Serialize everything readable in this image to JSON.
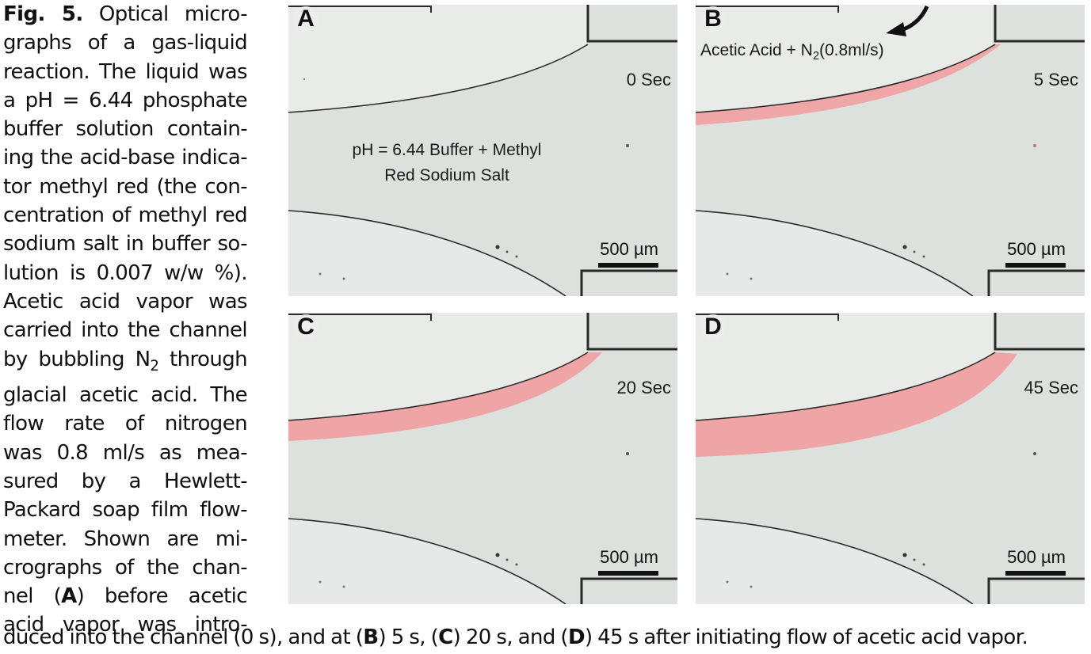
{
  "caption": {
    "fig_label": "Fig. 5.",
    "lines": [
      {
        "pre": "",
        "post": " Optical micro-"
      },
      {
        "text": "graphs of a gas-liquid"
      },
      {
        "text": "reaction. The liquid was"
      },
      {
        "text": "a pH = 6.44 phosphate"
      },
      {
        "text": "buffer solution contain-"
      },
      {
        "text": "ing the acid-base indica-"
      },
      {
        "text": "tor methyl red (the con-"
      },
      {
        "text": "centration of methyl red"
      },
      {
        "text": "sodium salt in buffer so-"
      },
      {
        "text": "lution is 0.007 w/w %)."
      },
      {
        "text": "Acetic acid vapor was"
      },
      {
        "text": "carried into the channel"
      },
      {
        "pre": "by bubbling N",
        "sub": "2",
        "post": " through"
      },
      {
        "text": "glacial acetic acid. The"
      },
      {
        "text": "flow rate of nitrogen"
      },
      {
        "text": "was 0.8 ml/s as mea-"
      },
      {
        "text": "sured by a Hewlett-"
      },
      {
        "text": "Packard soap film flow-"
      },
      {
        "text": "meter. Shown are mi-"
      },
      {
        "text": "crographs of the chan-"
      },
      {
        "pre": "nel (",
        "bold": "A",
        "post": ") before acetic"
      },
      {
        "text": "acid vapor was intro-"
      }
    ],
    "bottom": {
      "t1": "duced into the channel (0 s), and at (",
      "b1": "B",
      "t2": ") 5 s, (",
      "b2": "C",
      "t3": ") 20 s, and (",
      "b3": "D",
      "t4": ") 45 s after initiating flow of acetic acid vapor."
    }
  },
  "panels": [
    {
      "label": "A",
      "time": "0 Sec",
      "scale": "500 µm"
    },
    {
      "label": "B",
      "time": "5 Sec",
      "scale": "500 µm"
    },
    {
      "label": "C",
      "time": "20 Sec",
      "scale": "500 µm"
    },
    {
      "label": "D",
      "time": "45 Sec",
      "scale": "500 µm"
    }
  ],
  "annotations": {
    "buffer_line1": "pH = 6.44 Buffer + Methyl",
    "buffer_line2": "Red Sodium Salt",
    "gas_pre": "Acetic Acid + N",
    "gas_sub": "2",
    "gas_post": "(0.8ml/s)"
  },
  "colors": {
    "liquid_region": "#dde1de",
    "gas_region": "#e9ebe9",
    "red_indicator": "#f0a0a0",
    "channel_wall": "#2a2a2a"
  }
}
